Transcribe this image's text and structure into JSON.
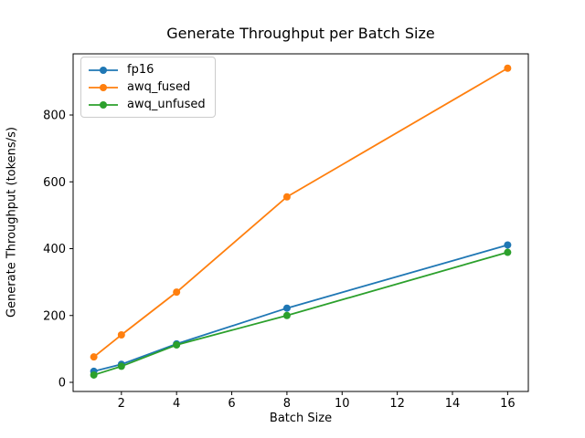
{
  "chart_data": {
    "type": "line",
    "title": "Generate Throughput per Batch Size",
    "xlabel": "Batch Size",
    "ylabel": "Generate Throughput (tokens/s)",
    "x": [
      1,
      2,
      4,
      8,
      16
    ],
    "series": [
      {
        "name": "fp16",
        "color": "#1f77b4",
        "values": [
          33,
          54,
          115,
          222,
          411
        ]
      },
      {
        "name": "awq_fused",
        "color": "#ff7f0e",
        "values": [
          76,
          142,
          270,
          555,
          940
        ]
      },
      {
        "name": "awq_unfused",
        "color": "#2ca02c",
        "values": [
          22,
          48,
          112,
          200,
          389
        ]
      }
    ],
    "xticks": [
      2,
      4,
      6,
      8,
      10,
      12,
      14,
      16
    ],
    "yticks": [
      0,
      200,
      400,
      600,
      800
    ],
    "xlim": [
      0.25,
      16.75
    ],
    "ylim": [
      -27.3,
      983
    ],
    "legend_position": "upper left",
    "grid": false,
    "marker": "o"
  }
}
